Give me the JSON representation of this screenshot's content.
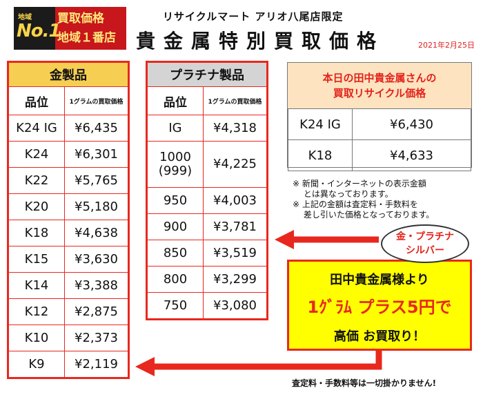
{
  "logo": {
    "area": "地域",
    "no1": "No.1",
    "line1": "買取価格",
    "line2": "地域１番店"
  },
  "shop_name": "リサイクルマート アリオ八尾店限定",
  "title": "貴金属特別買取価格",
  "date": "2021年2月25日",
  "gold": {
    "header": "金製品",
    "col1": "品位",
    "col2": "1グラムの買取価格",
    "rows": [
      {
        "grade": "K24 IG",
        "price": "¥6,435"
      },
      {
        "grade": "K24",
        "price": "¥6,301"
      },
      {
        "grade": "K22",
        "price": "¥5,765"
      },
      {
        "grade": "K20",
        "price": "¥5,180"
      },
      {
        "grade": "K18",
        "price": "¥4,638"
      },
      {
        "grade": "K15",
        "price": "¥3,630"
      },
      {
        "grade": "K14",
        "price": "¥3,388"
      },
      {
        "grade": "K12",
        "price": "¥2,875"
      },
      {
        "grade": "K10",
        "price": "¥2,373"
      },
      {
        "grade": "K9",
        "price": "¥2,119"
      }
    ]
  },
  "platinum": {
    "header": "プラチナ製品",
    "col1": "品位",
    "col2": "1グラムの買取価格",
    "rows": [
      {
        "grade": "IG",
        "price": "¥4,318"
      },
      {
        "grade": "1000\n(999)",
        "price": "¥4,225"
      },
      {
        "grade": "950",
        "price": "¥4,003"
      },
      {
        "grade": "900",
        "price": "¥3,781"
      },
      {
        "grade": "850",
        "price": "¥3,519"
      },
      {
        "grade": "800",
        "price": "¥3,299"
      },
      {
        "grade": "750",
        "price": "¥3,080"
      }
    ]
  },
  "today": {
    "line1": "本日の田中貴金属さんの",
    "line2": "買取リサイクル価格",
    "rows": [
      {
        "grade": "K24 IG",
        "price": "¥6,430"
      },
      {
        "grade": "K18",
        "price": "¥4,633"
      }
    ]
  },
  "notes": [
    "※ 新聞・インターネットの表示金額",
    "　 とは異なっております。",
    "※ 上記の金額は査定料・手数料を",
    "　 差し引いた価格となっております。"
  ],
  "bubble": {
    "line1": "金・プラチナ",
    "line2": "シルバー"
  },
  "promo": {
    "line1": "田中貴金属様より",
    "line2": "1ｸﾞﾗﾑ プラス5円で",
    "line3": "高価 お買取り！"
  },
  "footer": "査定料・手数料等は一切掛かりません!",
  "colors": {
    "accent_red": "#e8281e",
    "gold_header": "#f6cf52",
    "promo_yellow": "#ffff00"
  }
}
